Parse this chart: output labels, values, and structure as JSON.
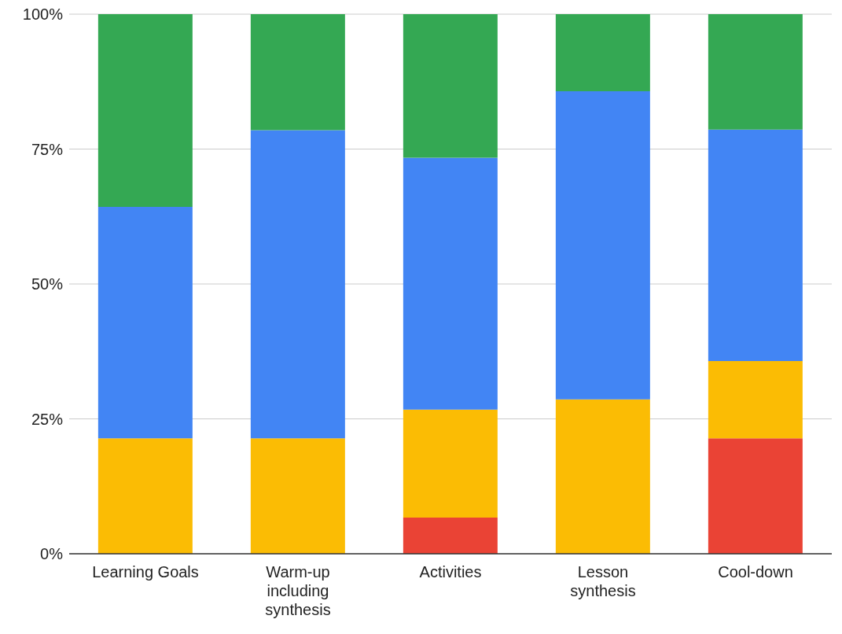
{
  "chart_data": {
    "type": "bar",
    "stacked": true,
    "categories": [
      "Learning Goals",
      "Warm-up including synthesis",
      "Activities",
      "Lesson synthesis",
      "Cool-down"
    ],
    "series": [
      {
        "color": "#ea4335",
        "values": [
          0,
          0,
          6.7,
          0,
          21.4
        ]
      },
      {
        "color": "#fbbc04",
        "values": [
          21.4,
          21.4,
          20,
          28.6,
          14.3
        ]
      },
      {
        "color": "#4285f4",
        "values": [
          42.9,
          57.1,
          46.7,
          57.1,
          42.9
        ]
      },
      {
        "color": "#34a853",
        "values": [
          35.7,
          21.5,
          26.6,
          14.3,
          21.4
        ]
      }
    ],
    "ylim": [
      0,
      100
    ],
    "yticks": [
      {
        "value": 0,
        "label": "0%"
      },
      {
        "value": 25,
        "label": "25%"
      },
      {
        "value": 50,
        "label": "50%"
      },
      {
        "value": 75,
        "label": "75%"
      },
      {
        "value": 100,
        "label": "100%"
      }
    ],
    "grid": "y",
    "legend": false
  }
}
